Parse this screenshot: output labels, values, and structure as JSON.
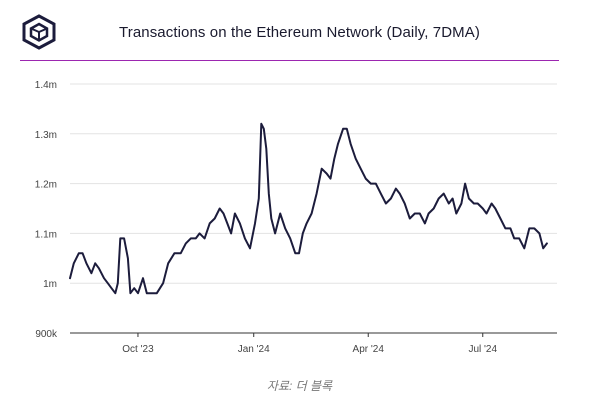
{
  "header": {
    "title": "Transactions on the Ethereum Network (Daily, 7DMA)",
    "logo_icon": "the-block-cube-logo-icon"
  },
  "footer": {
    "source": "자료: 더 블록"
  },
  "chart_data": {
    "type": "line",
    "title": "Transactions on the Ethereum Network (Daily, 7DMA)",
    "xlabel": "",
    "ylabel": "",
    "ylim": [
      900000,
      1400000
    ],
    "yticks": [
      900000,
      1000000,
      1100000,
      1200000,
      1300000,
      1400000
    ],
    "ytick_labels": [
      "900k",
      "1m",
      "1.1m",
      "1.2m",
      "1.3m",
      "1.4m"
    ],
    "xtick_labels": [
      {
        "label": "Oct '23",
        "date": "2023-10-01"
      },
      {
        "label": "Jan '24",
        "date": "2024-01-01"
      },
      {
        "label": "Apr '24",
        "date": "2024-04-01"
      },
      {
        "label": "Jul '24",
        "date": "2024-07-01"
      }
    ],
    "xrange": [
      "2023-08-08",
      "2024-08-29"
    ],
    "grid": true,
    "line_color": "#1c1c3c",
    "series": [
      {
        "points": [
          [
            "2023-08-08",
            1010000
          ],
          [
            "2023-08-11",
            1040000
          ],
          [
            "2023-08-15",
            1060000
          ],
          [
            "2023-08-18",
            1060000
          ],
          [
            "2023-08-21",
            1040000
          ],
          [
            "2023-08-25",
            1020000
          ],
          [
            "2023-08-28",
            1040000
          ],
          [
            "2023-08-31",
            1030000
          ],
          [
            "2023-09-04",
            1010000
          ],
          [
            "2023-09-07",
            1000000
          ],
          [
            "2023-09-10",
            990000
          ],
          [
            "2023-09-13",
            980000
          ],
          [
            "2023-09-15",
            1000000
          ],
          [
            "2023-09-17",
            1090000
          ],
          [
            "2023-09-20",
            1090000
          ],
          [
            "2023-09-23",
            1050000
          ],
          [
            "2023-09-25",
            980000
          ],
          [
            "2023-09-28",
            990000
          ],
          [
            "2023-10-01",
            980000
          ],
          [
            "2023-10-05",
            1010000
          ],
          [
            "2023-10-08",
            980000
          ],
          [
            "2023-10-12",
            980000
          ],
          [
            "2023-10-16",
            980000
          ],
          [
            "2023-10-21",
            1000000
          ],
          [
            "2023-10-25",
            1040000
          ],
          [
            "2023-10-30",
            1060000
          ],
          [
            "2023-11-04",
            1060000
          ],
          [
            "2023-11-08",
            1080000
          ],
          [
            "2023-11-12",
            1090000
          ],
          [
            "2023-11-16",
            1090000
          ],
          [
            "2023-11-19",
            1100000
          ],
          [
            "2023-11-23",
            1090000
          ],
          [
            "2023-11-27",
            1120000
          ],
          [
            "2023-12-01",
            1130000
          ],
          [
            "2023-12-05",
            1150000
          ],
          [
            "2023-12-08",
            1140000
          ],
          [
            "2023-12-11",
            1120000
          ],
          [
            "2023-12-14",
            1100000
          ],
          [
            "2023-12-17",
            1140000
          ],
          [
            "2023-12-21",
            1120000
          ],
          [
            "2023-12-25",
            1090000
          ],
          [
            "2023-12-29",
            1070000
          ],
          [
            "2024-01-02",
            1120000
          ],
          [
            "2024-01-05",
            1170000
          ],
          [
            "2024-01-07",
            1320000
          ],
          [
            "2024-01-09",
            1310000
          ],
          [
            "2024-01-11",
            1270000
          ],
          [
            "2024-01-13",
            1180000
          ],
          [
            "2024-01-15",
            1130000
          ],
          [
            "2024-01-18",
            1100000
          ],
          [
            "2024-01-22",
            1140000
          ],
          [
            "2024-01-26",
            1110000
          ],
          [
            "2024-01-30",
            1090000
          ],
          [
            "2024-02-03",
            1060000
          ],
          [
            "2024-02-06",
            1060000
          ],
          [
            "2024-02-09",
            1100000
          ],
          [
            "2024-02-12",
            1120000
          ],
          [
            "2024-02-16",
            1140000
          ],
          [
            "2024-02-20",
            1180000
          ],
          [
            "2024-02-24",
            1230000
          ],
          [
            "2024-02-28",
            1220000
          ],
          [
            "2024-03-02",
            1210000
          ],
          [
            "2024-03-05",
            1250000
          ],
          [
            "2024-03-08",
            1280000
          ],
          [
            "2024-03-12",
            1310000
          ],
          [
            "2024-03-15",
            1310000
          ],
          [
            "2024-03-18",
            1280000
          ],
          [
            "2024-03-22",
            1250000
          ],
          [
            "2024-03-26",
            1230000
          ],
          [
            "2024-03-30",
            1210000
          ],
          [
            "2024-04-03",
            1200000
          ],
          [
            "2024-04-07",
            1200000
          ],
          [
            "2024-04-11",
            1180000
          ],
          [
            "2024-04-15",
            1160000
          ],
          [
            "2024-04-19",
            1170000
          ],
          [
            "2024-04-23",
            1190000
          ],
          [
            "2024-04-26",
            1180000
          ],
          [
            "2024-04-30",
            1160000
          ],
          [
            "2024-05-04",
            1130000
          ],
          [
            "2024-05-08",
            1140000
          ],
          [
            "2024-05-12",
            1140000
          ],
          [
            "2024-05-16",
            1120000
          ],
          [
            "2024-05-19",
            1140000
          ],
          [
            "2024-05-23",
            1150000
          ],
          [
            "2024-05-27",
            1170000
          ],
          [
            "2024-05-31",
            1180000
          ],
          [
            "2024-06-04",
            1160000
          ],
          [
            "2024-06-07",
            1170000
          ],
          [
            "2024-06-10",
            1140000
          ],
          [
            "2024-06-14",
            1160000
          ],
          [
            "2024-06-17",
            1200000
          ],
          [
            "2024-06-20",
            1170000
          ],
          [
            "2024-06-24",
            1160000
          ],
          [
            "2024-06-27",
            1160000
          ],
          [
            "2024-07-01",
            1150000
          ],
          [
            "2024-07-04",
            1140000
          ],
          [
            "2024-07-08",
            1160000
          ],
          [
            "2024-07-11",
            1150000
          ],
          [
            "2024-07-15",
            1130000
          ],
          [
            "2024-07-19",
            1110000
          ],
          [
            "2024-07-23",
            1110000
          ],
          [
            "2024-07-26",
            1090000
          ],
          [
            "2024-07-30",
            1090000
          ],
          [
            "2024-08-03",
            1070000
          ],
          [
            "2024-08-07",
            1110000
          ],
          [
            "2024-08-11",
            1110000
          ],
          [
            "2024-08-15",
            1100000
          ],
          [
            "2024-08-18",
            1070000
          ],
          [
            "2024-08-21",
            1080000
          ]
        ]
      }
    ]
  }
}
